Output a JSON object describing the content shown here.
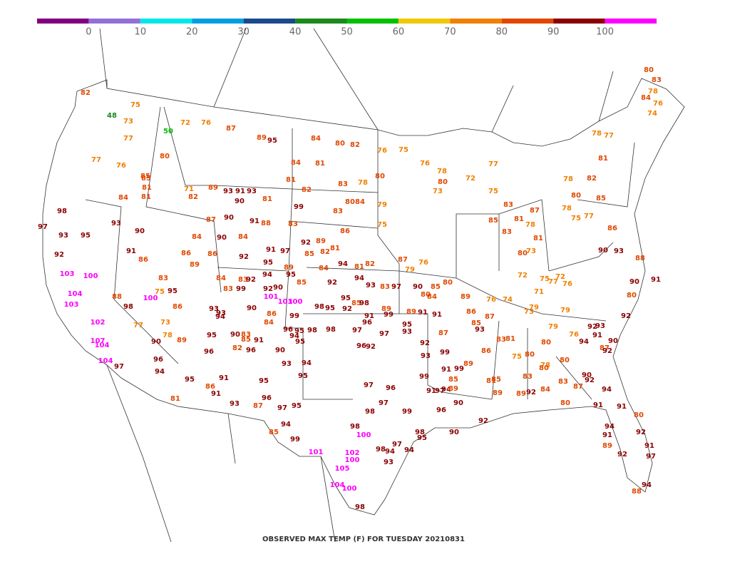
{
  "colorbar": {
    "colors": [
      "#800080",
      "#9370d8",
      "#00e8e8",
      "#00a0e0",
      "#1a4a8c",
      "#1a8a1a",
      "#00c000",
      "#f0c800",
      "#f08000",
      "#e04800",
      "#8b0000",
      "#ff00ff"
    ],
    "ticks": [
      0,
      10,
      20,
      30,
      40,
      50,
      60,
      70,
      80,
      90,
      100
    ]
  },
  "caption": "OBSERVED MAX TEMP (F) FOR TUESDAY 20210831",
  "stations": [
    82,
    48,
    50,
    72,
    76,
    87,
    89,
    95,
    84,
    80,
    82,
    76,
    75,
    75,
    73,
    77,
    77,
    76,
    80,
    81,
    85,
    84,
    98,
    97,
    93,
    95,
    93,
    90,
    91,
    86,
    92,
    103,
    100,
    104,
    103,
    102,
    107,
    104,
    104,
    97,
    96,
    94,
    95,
    81,
    91,
    86,
    91,
    93,
    87,
    95,
    96,
    97,
    95,
    85,
    94,
    99,
    101,
    105,
    104,
    100,
    98,
    98,
    100,
    102,
    100,
    97,
    96,
    99,
    98,
    97,
    98,
    93,
    94,
    97,
    98,
    95,
    94,
    96,
    97,
    91,
    94,
    89,
    90,
    92,
    90,
    89,
    85,
    86,
    83,
    81,
    75,
    80,
    80,
    78,
    80,
    83,
    89,
    92,
    84,
    80,
    83,
    80,
    76,
    79,
    92,
    93,
    91,
    90,
    87,
    94,
    92,
    90,
    92,
    87,
    94,
    91,
    94,
    92,
    91,
    89,
    92,
    91,
    97,
    88,
    94,
    91,
    80,
    80,
    83,
    78,
    84,
    76,
    74,
    77,
    78,
    81,
    78,
    82,
    85,
    86,
    90,
    93,
    88,
    91,
    92,
    90,
    80,
    76,
    78,
    77,
    73,
    80,
    72,
    75,
    83,
    85,
    81,
    83,
    78,
    81,
    80,
    73,
    72,
    75,
    71,
    73,
    74,
    76,
    79,
    79,
    76,
    72,
    77,
    75,
    77,
    80,
    78,
    87,
    81,
    82,
    84,
    81,
    83,
    78,
    80,
    84,
    80,
    83,
    79,
    75,
    86,
    89,
    85,
    82,
    81,
    94,
    84,
    81,
    82,
    79,
    76,
    87,
    92,
    83,
    99,
    92,
    94,
    93,
    95,
    85,
    83,
    97,
    98,
    95,
    92,
    98,
    99,
    95,
    98,
    98,
    97,
    96,
    97,
    96,
    92,
    89,
    91,
    91,
    93,
    87,
    84,
    90,
    80,
    85,
    80,
    89,
    86,
    85,
    93,
    87,
    89,
    99,
    91,
    95,
    92,
    99,
    93,
    91,
    99,
    99,
    85,
    89,
    81,
    85,
    81,
    82,
    71,
    89,
    93,
    91,
    93,
    90,
    81,
    87,
    90,
    91,
    88,
    84,
    84,
    90,
    86,
    89,
    86,
    92,
    91,
    97,
    95,
    89,
    95,
    84,
    83,
    92,
    94,
    92,
    90,
    83,
    99,
    101,
    103,
    100,
    85,
    83,
    75,
    95,
    86,
    100,
    98,
    88,
    77,
    73,
    78,
    90,
    89,
    96,
    95,
    93,
    94,
    86,
    90,
    93,
    84,
    83,
    90,
    85,
    91,
    82,
    96,
    90,
    93,
    95,
    94,
    96,
    94,
    95
  ]
}
